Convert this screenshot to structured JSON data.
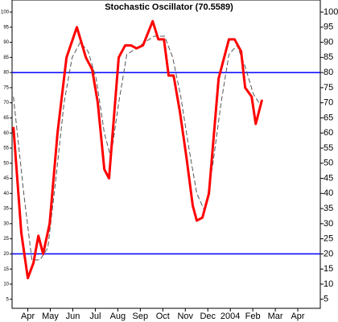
{
  "chart_data": {
    "type": "line",
    "title": "Stochastic Oscillator (70.5589)",
    "xlim": [
      -0.7,
      13.0
    ],
    "xticks": [
      {
        "value": 0,
        "label": "Apr"
      },
      {
        "value": 1,
        "label": "May"
      },
      {
        "value": 2,
        "label": "Jun"
      },
      {
        "value": 3,
        "label": "Jul"
      },
      {
        "value": 4,
        "label": "Aug"
      },
      {
        "value": 5,
        "label": "Sep"
      },
      {
        "value": 6,
        "label": "Oct"
      },
      {
        "value": 7,
        "label": "Nov"
      },
      {
        "value": 8,
        "label": "Dec"
      },
      {
        "value": 9,
        "label": "2004"
      },
      {
        "value": 10,
        "label": "Feb"
      },
      {
        "value": 11,
        "label": "Mar"
      },
      {
        "value": 12,
        "label": "Apr"
      }
    ],
    "ylim": [
      2,
      104
    ],
    "yticks": [
      5,
      10,
      15,
      20,
      25,
      30,
      35,
      40,
      45,
      50,
      55,
      60,
      65,
      70,
      75,
      80,
      85,
      90,
      95,
      100
    ],
    "hlines": [
      {
        "value": 80,
        "color": "#0000ff"
      },
      {
        "value": 20,
        "color": "#0000ff"
      }
    ],
    "series": [
      {
        "color": "#ff0000",
        "dashed": false,
        "x": [
          -0.64,
          -0.29,
          0,
          0.25,
          0.47,
          0.68,
          0.97,
          1.32,
          1.72,
          2.18,
          2.58,
          2.86,
          3.11,
          3.4,
          3.61,
          4.04,
          4.33,
          4.58,
          4.83,
          5.12,
          5.55,
          5.8,
          6.05,
          6.26,
          6.48,
          6.76,
          7.05,
          7.33,
          7.51,
          7.76,
          8.05,
          8.48,
          8.94,
          9.19,
          9.48,
          9.66,
          9.95,
          10.13,
          10.41
        ],
        "values": [
          62,
          27,
          12,
          17,
          26,
          20,
          30,
          60,
          85,
          95,
          85,
          81,
          70,
          48,
          45,
          85,
          89,
          89,
          88,
          89,
          97,
          91,
          91,
          79,
          79,
          67,
          52,
          36,
          31,
          32,
          40,
          78,
          91,
          91,
          87,
          75,
          72,
          63,
          71
        ]
      },
      {
        "color": "#555555",
        "dashed": true,
        "x": [
          -0.64,
          -0.18,
          0.18,
          0.54,
          0.89,
          1.25,
          1.61,
          1.97,
          2.33,
          2.68,
          3.04,
          3.4,
          3.69,
          4.04,
          4.4,
          4.83,
          5.19,
          5.62,
          6.08,
          6.44,
          6.8,
          7.16,
          7.51,
          7.87,
          8.23,
          8.59,
          8.94,
          9.3,
          9.66,
          10.02,
          10.27
        ],
        "values": [
          72,
          40,
          18,
          18,
          22,
          45,
          70,
          85,
          90,
          87,
          78,
          60,
          52,
          70,
          86,
          88,
          90,
          92,
          92,
          85,
          72,
          55,
          40,
          34,
          50,
          70,
          86,
          89,
          82,
          73,
          70
        ]
      }
    ]
  }
}
